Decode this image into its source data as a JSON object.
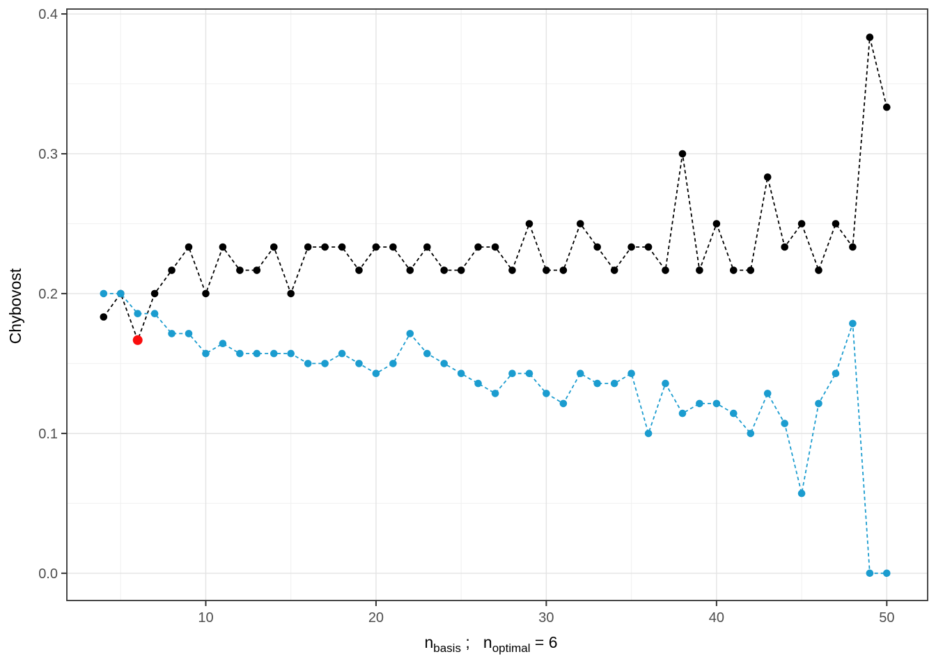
{
  "chart_data": {
    "type": "line",
    "title": "",
    "ylabel": "Chybovost",
    "xlabel_plain": "n_basis ;  n_optimal = 6",
    "xlabel_parts": [
      {
        "t": "n",
        "sub": false
      },
      {
        "t": "basis",
        "sub": true
      },
      {
        "t": " ;   ",
        "sub": false
      },
      {
        "t": "n",
        "sub": false
      },
      {
        "t": "optimal",
        "sub": true
      },
      {
        "t": " = 6",
        "sub": false
      }
    ],
    "x_ticks": [
      10,
      20,
      30,
      40,
      50
    ],
    "y_ticks": [
      "0.0",
      "0.1",
      "0.2",
      "0.3",
      "0.4"
    ],
    "x_minor": [
      5,
      15,
      25,
      35,
      45
    ],
    "y_minor": [
      0.05,
      0.15,
      0.25,
      0.35
    ],
    "xlim": [
      1.84,
      52.4
    ],
    "ylim": [
      -0.0195,
      0.4035
    ],
    "grid": "on",
    "legend": "none",
    "x": [
      4,
      5,
      6,
      7,
      8,
      9,
      10,
      11,
      12,
      13,
      14,
      15,
      16,
      17,
      18,
      19,
      20,
      21,
      22,
      23,
      24,
      25,
      26,
      27,
      28,
      29,
      30,
      31,
      32,
      33,
      34,
      35,
      36,
      37,
      38,
      39,
      40,
      41,
      42,
      43,
      44,
      45,
      46,
      47,
      48,
      49,
      50
    ],
    "series": [
      {
        "name": "cv-error-black",
        "color": "#000000",
        "linetype": "dashed",
        "values": [
          0.1833,
          0.2,
          0.1667,
          0.2,
          0.2167,
          0.2333,
          0.2,
          0.2333,
          0.2167,
          0.2167,
          0.2333,
          0.2,
          0.2333,
          0.2333,
          0.2333,
          0.2167,
          0.2333,
          0.2333,
          0.2167,
          0.2333,
          0.2167,
          0.2167,
          0.2333,
          0.2333,
          0.2167,
          0.25,
          0.2167,
          0.2167,
          0.25,
          0.2333,
          0.2167,
          0.2333,
          0.2333,
          0.2167,
          0.3,
          0.2167,
          0.25,
          0.2167,
          0.2167,
          0.2833,
          0.2333,
          0.25,
          0.2167,
          0.25,
          0.2333,
          0.3833,
          0.3333
        ]
      },
      {
        "name": "validation-error-blue",
        "color": "#1B9CCF",
        "linetype": "dashed",
        "values": [
          0.2,
          0.2,
          0.1857,
          0.1857,
          0.1714,
          0.1714,
          0.1571,
          0.1643,
          0.1571,
          0.1571,
          0.1571,
          0.1571,
          0.15,
          0.15,
          0.1571,
          0.15,
          0.1429,
          0.15,
          0.1714,
          0.1571,
          0.15,
          0.1429,
          0.1357,
          0.1286,
          0.1429,
          0.1429,
          0.1286,
          0.1214,
          0.1429,
          0.1357,
          0.1357,
          0.1429,
          0.1,
          0.1357,
          0.1143,
          0.1214,
          0.1214,
          0.1143,
          0.1,
          0.1286,
          0.1071,
          0.0571,
          0.1214,
          0.1429,
          0.1786,
          0.0,
          0.0
        ]
      }
    ],
    "highlight": {
      "x": 6,
      "y": 0.1667,
      "color": "#FA0D0D",
      "meaning": "optimal-n-point"
    }
  },
  "style": {
    "panel_bg": "#FFFFFF",
    "grid_major": "#E3E3E3",
    "grid_minor": "#F0F0F0",
    "panel_border": "#333333",
    "tick_color": "#333333",
    "tick_label_color": "#4D4D4D",
    "axis_title_color": "#000000"
  }
}
